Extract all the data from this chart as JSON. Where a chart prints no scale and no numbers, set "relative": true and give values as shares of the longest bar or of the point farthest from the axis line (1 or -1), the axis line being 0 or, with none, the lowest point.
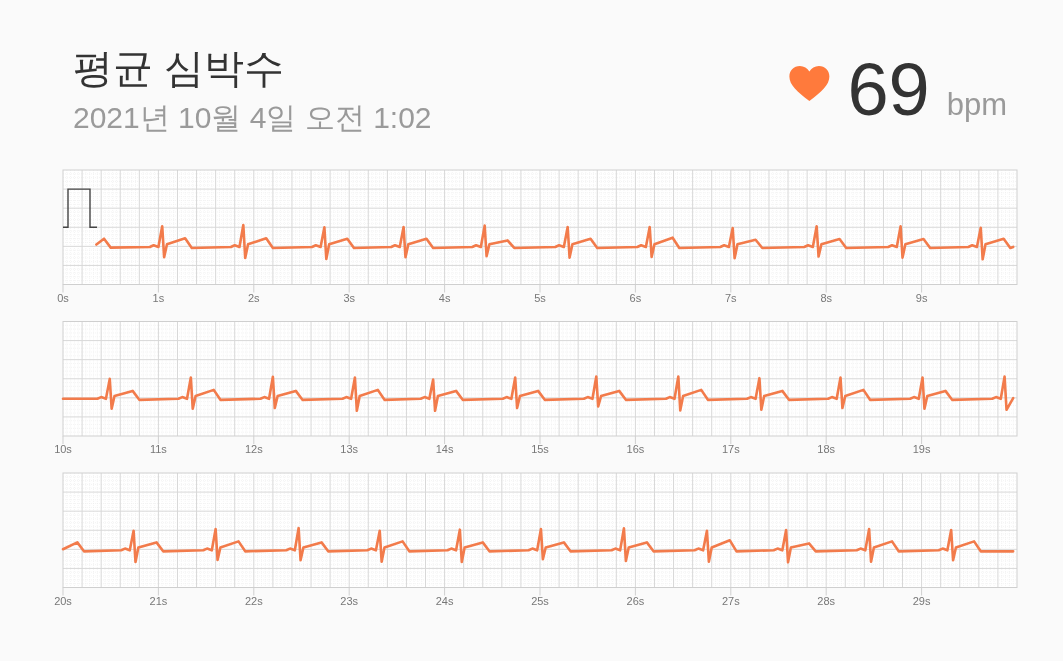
{
  "chart_data": [
    {
      "type": "line",
      "title": "평균 심박수",
      "subtitle": "2021년 10월 4일 오전 1:02",
      "annotations": [
        "69",
        "bpm"
      ],
      "relative": true,
      "color": "#f27b4b",
      "grid": true,
      "xlim": [
        0,
        10
      ],
      "xticks": [
        {
          "value": 0,
          "label": "0s"
        },
        {
          "value": 1,
          "label": "1s"
        },
        {
          "value": 2,
          "label": "2s"
        },
        {
          "value": 3,
          "label": "3s"
        },
        {
          "value": 4,
          "label": "4s"
        },
        {
          "value": 5,
          "label": "5s"
        },
        {
          "value": 6,
          "label": "6s"
        },
        {
          "value": 7,
          "label": "7s"
        },
        {
          "value": 8,
          "label": "8s"
        },
        {
          "value": 9,
          "label": "9s"
        }
      ],
      "x": [
        0.35,
        0.43,
        0.5,
        0.91,
        0.95,
        1.0,
        1.04,
        1.06,
        1.09,
        1.28,
        1.35,
        1.76,
        1.8,
        1.85,
        1.89,
        1.91,
        1.94,
        2.13,
        2.2,
        2.61,
        2.65,
        2.7,
        2.74,
        2.76,
        2.79,
        2.98,
        3.05,
        3.44,
        3.48,
        3.53,
        3.57,
        3.59,
        3.62,
        3.81,
        3.88,
        4.29,
        4.33,
        4.38,
        4.42,
        4.44,
        4.47,
        4.66,
        4.73,
        5.16,
        5.2,
        5.25,
        5.29,
        5.31,
        5.34,
        5.53,
        5.6,
        6.02,
        6.06,
        6.11,
        6.15,
        6.17,
        6.2,
        6.39,
        6.46,
        6.89,
        6.93,
        6.98,
        7.02,
        7.04,
        7.07,
        7.26,
        7.33,
        7.77,
        7.81,
        7.86,
        7.9,
        7.92,
        7.95,
        8.14,
        8.21,
        8.65,
        8.69,
        8.74,
        8.78,
        8.8,
        8.83,
        9.02,
        9.09,
        9.49,
        9.53,
        9.58,
        9.62,
        9.64,
        9.67,
        9.86,
        9.93,
        9.96
      ],
      "values": [
        0.43,
        0.6,
        0.34,
        0.36,
        0.41,
        0.36,
        0.96,
        0.06,
        0.44,
        0.61,
        0.33,
        0.36,
        0.41,
        0.36,
        1.0,
        0.04,
        0.44,
        0.61,
        0.33,
        0.36,
        0.41,
        0.36,
        0.93,
        0.01,
        0.44,
        0.6,
        0.33,
        0.36,
        0.41,
        0.36,
        0.94,
        0.06,
        0.44,
        0.6,
        0.33,
        0.36,
        0.41,
        0.36,
        0.98,
        0.09,
        0.44,
        0.55,
        0.33,
        0.36,
        0.41,
        0.36,
        0.94,
        0.05,
        0.44,
        0.6,
        0.33,
        0.36,
        0.41,
        0.36,
        0.94,
        0.07,
        0.44,
        0.63,
        0.33,
        0.36,
        0.41,
        0.36,
        0.91,
        0.03,
        0.44,
        0.57,
        0.33,
        0.36,
        0.41,
        0.36,
        0.96,
        0.08,
        0.44,
        0.59,
        0.33,
        0.36,
        0.41,
        0.36,
        0.96,
        0.05,
        0.44,
        0.59,
        0.33,
        0.36,
        0.41,
        0.36,
        0.92,
        0.0,
        0.44,
        0.6,
        0.33,
        0.36
      ]
    },
    {
      "type": "line",
      "relative": true,
      "color": "#f27b4b",
      "grid": true,
      "xlim": [
        10,
        20
      ],
      "xticks": [
        {
          "value": 10,
          "label": "10s"
        },
        {
          "value": 11,
          "label": "11s"
        },
        {
          "value": 12,
          "label": "12s"
        },
        {
          "value": 13,
          "label": "13s"
        },
        {
          "value": 14,
          "label": "14s"
        },
        {
          "value": 15,
          "label": "15s"
        },
        {
          "value": 16,
          "label": "16s"
        },
        {
          "value": 17,
          "label": "17s"
        },
        {
          "value": 18,
          "label": "18s"
        },
        {
          "value": 19,
          "label": "19s"
        }
      ],
      "x": [
        10.0,
        10.36,
        10.4,
        10.45,
        10.49,
        10.51,
        10.54,
        10.73,
        10.8,
        11.21,
        11.25,
        11.3,
        11.34,
        11.36,
        11.39,
        11.58,
        11.65,
        12.07,
        12.11,
        12.16,
        12.2,
        12.22,
        12.25,
        12.44,
        12.51,
        12.93,
        12.97,
        13.02,
        13.06,
        13.08,
        13.11,
        13.3,
        13.37,
        13.75,
        13.79,
        13.84,
        13.88,
        13.9,
        13.93,
        14.12,
        14.19,
        14.61,
        14.65,
        14.7,
        14.74,
        14.76,
        14.79,
        14.98,
        15.05,
        15.46,
        15.5,
        15.55,
        15.59,
        15.61,
        15.64,
        15.83,
        15.9,
        16.32,
        16.36,
        16.41,
        16.45,
        16.47,
        16.5,
        16.69,
        16.76,
        17.17,
        17.21,
        17.26,
        17.3,
        17.32,
        17.35,
        17.54,
        17.61,
        18.02,
        18.06,
        18.11,
        18.15,
        18.17,
        18.2,
        18.39,
        18.46,
        18.88,
        18.92,
        18.97,
        19.01,
        19.03,
        19.06,
        19.25,
        19.32,
        19.74,
        19.78,
        19.83,
        19.87,
        19.89,
        19.96
      ],
      "values": [
        0.35,
        0.35,
        0.4,
        0.35,
        0.93,
        0.06,
        0.43,
        0.58,
        0.32,
        0.35,
        0.4,
        0.35,
        0.97,
        0.06,
        0.43,
        0.61,
        0.32,
        0.35,
        0.4,
        0.35,
        0.99,
        0.08,
        0.43,
        0.58,
        0.32,
        0.35,
        0.4,
        0.35,
        0.97,
        0.0,
        0.43,
        0.61,
        0.32,
        0.35,
        0.4,
        0.35,
        0.91,
        0.0,
        0.43,
        0.58,
        0.32,
        0.35,
        0.4,
        0.35,
        0.97,
        0.08,
        0.43,
        0.58,
        0.32,
        0.35,
        0.4,
        0.35,
        1.0,
        0.13,
        0.43,
        0.58,
        0.32,
        0.35,
        0.4,
        0.35,
        1.0,
        0.01,
        0.43,
        0.61,
        0.32,
        0.35,
        0.4,
        0.35,
        0.95,
        0.03,
        0.43,
        0.58,
        0.32,
        0.35,
        0.4,
        0.35,
        0.97,
        0.08,
        0.43,
        0.61,
        0.32,
        0.35,
        0.4,
        0.35,
        0.97,
        0.06,
        0.43,
        0.58,
        0.32,
        0.35,
        0.4,
        0.35,
        1.0,
        0.03,
        0.37
      ]
    },
    {
      "type": "line",
      "relative": true,
      "color": "#f27b4b",
      "grid": true,
      "xlim": [
        20,
        30
      ],
      "xticks": [
        {
          "value": 20,
          "label": "20s"
        },
        {
          "value": 21,
          "label": "21s"
        },
        {
          "value": 22,
          "label": "22s"
        },
        {
          "value": 23,
          "label": "23s"
        },
        {
          "value": 24,
          "label": "24s"
        },
        {
          "value": 25,
          "label": "25s"
        },
        {
          "value": 26,
          "label": "26s"
        },
        {
          "value": 27,
          "label": "27s"
        },
        {
          "value": 28,
          "label": "28s"
        },
        {
          "value": 29,
          "label": "29s"
        }
      ],
      "x": [
        20.0,
        20.15,
        20.22,
        20.61,
        20.65,
        20.7,
        20.74,
        20.76,
        20.79,
        20.98,
        21.05,
        21.47,
        21.51,
        21.56,
        21.6,
        21.62,
        21.65,
        21.84,
        21.91,
        22.34,
        22.38,
        22.43,
        22.47,
        22.49,
        22.52,
        22.71,
        22.78,
        23.19,
        23.23,
        23.28,
        23.32,
        23.34,
        23.37,
        23.56,
        23.63,
        24.03,
        24.07,
        24.12,
        24.16,
        24.18,
        24.21,
        24.4,
        24.47,
        24.88,
        24.92,
        24.97,
        25.01,
        25.03,
        25.06,
        25.25,
        25.32,
        25.75,
        25.79,
        25.84,
        25.88,
        25.9,
        25.93,
        26.12,
        26.19,
        26.62,
        26.66,
        26.71,
        26.75,
        26.77,
        26.8,
        26.99,
        27.06,
        27.45,
        27.49,
        27.54,
        27.58,
        27.6,
        27.63,
        27.82,
        27.89,
        28.32,
        28.36,
        28.41,
        28.45,
        28.47,
        28.5,
        28.69,
        28.76,
        29.18,
        29.22,
        29.27,
        29.31,
        29.33,
        29.36,
        29.55,
        29.62,
        29.96
      ],
      "values": [
        0.38,
        0.58,
        0.32,
        0.35,
        0.4,
        0.35,
        0.92,
        0.01,
        0.43,
        0.58,
        0.32,
        0.35,
        0.4,
        0.35,
        0.97,
        0.07,
        0.43,
        0.61,
        0.32,
        0.35,
        0.4,
        0.35,
        1.0,
        0.06,
        0.43,
        0.58,
        0.32,
        0.35,
        0.4,
        0.35,
        0.92,
        0.02,
        0.43,
        0.61,
        0.32,
        0.35,
        0.4,
        0.35,
        0.95,
        0.01,
        0.43,
        0.58,
        0.32,
        0.35,
        0.4,
        0.35,
        0.97,
        0.09,
        0.43,
        0.58,
        0.32,
        0.35,
        0.4,
        0.35,
        0.99,
        0.04,
        0.43,
        0.58,
        0.32,
        0.35,
        0.4,
        0.35,
        0.92,
        0.02,
        0.43,
        0.64,
        0.32,
        0.35,
        0.4,
        0.35,
        0.94,
        0.0,
        0.43,
        0.55,
        0.32,
        0.35,
        0.4,
        0.35,
        0.97,
        0.02,
        0.43,
        0.61,
        0.32,
        0.35,
        0.4,
        0.35,
        0.94,
        0.06,
        0.43,
        0.61,
        0.32,
        0.32
      ]
    }
  ]
}
